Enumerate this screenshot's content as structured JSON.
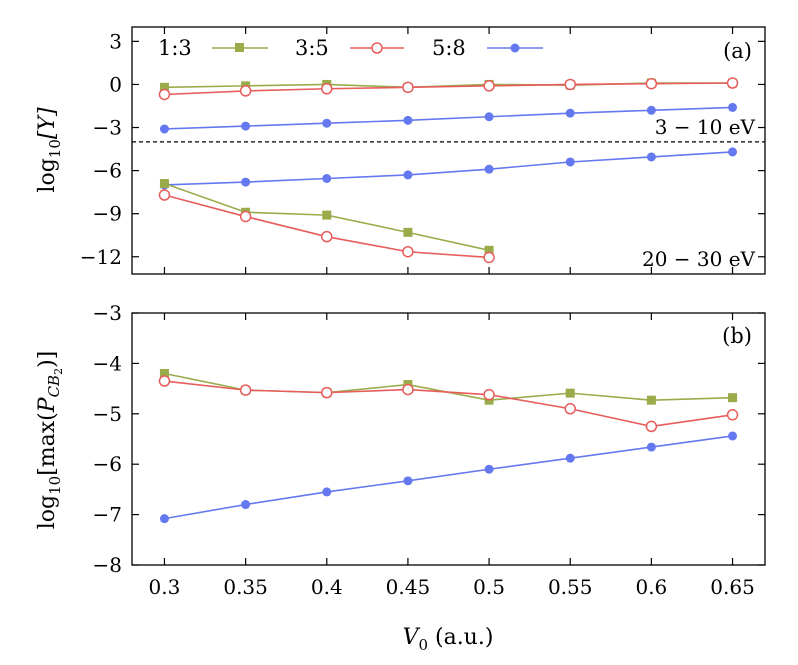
{
  "colors": {
    "series_1_3": "#9aab4a",
    "series_3_5": "#e85c5c",
    "series_5_8": "#6478ef",
    "axis": "#000000",
    "threshold_line": "#000000"
  },
  "figure": {
    "xlabel": "V",
    "xlabel_sub": "0",
    "xlabel_unit": " (a.u.)"
  },
  "legend": {
    "entries": [
      "1:3",
      "3:5",
      "5:8"
    ]
  },
  "chart_data": [
    {
      "panel_label": "(a)",
      "type": "line",
      "x": [
        0.3,
        0.35,
        0.4,
        0.45,
        0.5,
        0.55,
        0.6,
        0.65
      ],
      "xticklabels": [
        "0.3",
        "0.35",
        "0.4",
        "0.45",
        "0.5",
        "0.55",
        "0.6",
        "0.65"
      ],
      "xlim": [
        0.28,
        0.67
      ],
      "ylim": [
        -13.2,
        4
      ],
      "yticks": [
        3,
        0,
        -3,
        -6,
        -9,
        -12
      ],
      "yticklabels": [
        "3",
        "0",
        "−3",
        "−6",
        "−9",
        "−12"
      ],
      "ylabel_prefix": "log",
      "ylabel_sub": "10",
      "ylabel_arg": "[Y]",
      "threshold": -4,
      "annotations": [
        "3 − 10 eV",
        "20 − 30 eV"
      ],
      "series": [
        {
          "name": "1:3",
          "marker": "filled-square",
          "group": "3 − 10 eV",
          "values": [
            -0.2,
            -0.1,
            0.0,
            -0.2,
            0.0,
            -0.05,
            0.1,
            0.1
          ]
        },
        {
          "name": "3:5",
          "marker": "open-circle",
          "group": "3 − 10 eV",
          "values": [
            -0.7,
            -0.45,
            -0.3,
            -0.2,
            -0.1,
            0.0,
            0.05,
            0.1
          ]
        },
        {
          "name": "5:8",
          "marker": "filled-circle",
          "group": "3 − 10 eV",
          "values": [
            -3.1,
            -2.9,
            -2.7,
            -2.5,
            -2.25,
            -2.0,
            -1.8,
            -1.6
          ]
        },
        {
          "name": "5:8",
          "marker": "filled-circle",
          "group": "20 − 30 eV",
          "values": [
            -7.0,
            -6.8,
            -6.55,
            -6.3,
            -5.9,
            -5.4,
            -5.05,
            -4.7
          ]
        },
        {
          "name": "1:3",
          "marker": "filled-square",
          "group": "20 − 30 eV",
          "values": [
            -6.9,
            -8.9,
            -9.1,
            -10.3,
            -11.55,
            null,
            null,
            null
          ]
        },
        {
          "name": "3:5",
          "marker": "open-circle",
          "group": "20 − 30 eV",
          "values": [
            -7.7,
            -9.2,
            -10.6,
            -11.65,
            -12.05,
            null,
            null,
            null
          ]
        }
      ]
    },
    {
      "panel_label": "(b)",
      "type": "line",
      "x": [
        0.3,
        0.35,
        0.4,
        0.45,
        0.5,
        0.55,
        0.6,
        0.65
      ],
      "xticklabels": [
        "0.3",
        "0.35",
        "0.4",
        "0.45",
        "0.5",
        "0.55",
        "0.6",
        "0.65"
      ],
      "xlim": [
        0.28,
        0.67
      ],
      "ylim": [
        -8,
        -3
      ],
      "yticks": [
        -3,
        -4,
        -5,
        -6,
        -7,
        -8
      ],
      "yticklabels": [
        "−3",
        "−4",
        "−5",
        "−6",
        "−7",
        "−8"
      ],
      "ylabel_prefix": "log",
      "ylabel_sub": "10",
      "ylabel_mid": "[max(",
      "ylabel_P": "P",
      "ylabel_CB": "CB",
      "ylabel_CB_sub": "2",
      "ylabel_end": ")]",
      "series": [
        {
          "name": "1:3",
          "marker": "filled-square",
          "values": [
            -4.2,
            -4.53,
            -4.58,
            -4.42,
            -4.73,
            -4.59,
            -4.73,
            -4.68
          ]
        },
        {
          "name": "3:5",
          "marker": "open-circle",
          "values": [
            -4.35,
            -4.53,
            -4.58,
            -4.52,
            -4.62,
            -4.9,
            -5.25,
            -5.02
          ]
        },
        {
          "name": "5:8",
          "marker": "filled-circle",
          "values": [
            -7.08,
            -6.8,
            -6.55,
            -6.33,
            -6.1,
            -5.88,
            -5.66,
            -5.44
          ]
        }
      ]
    }
  ]
}
